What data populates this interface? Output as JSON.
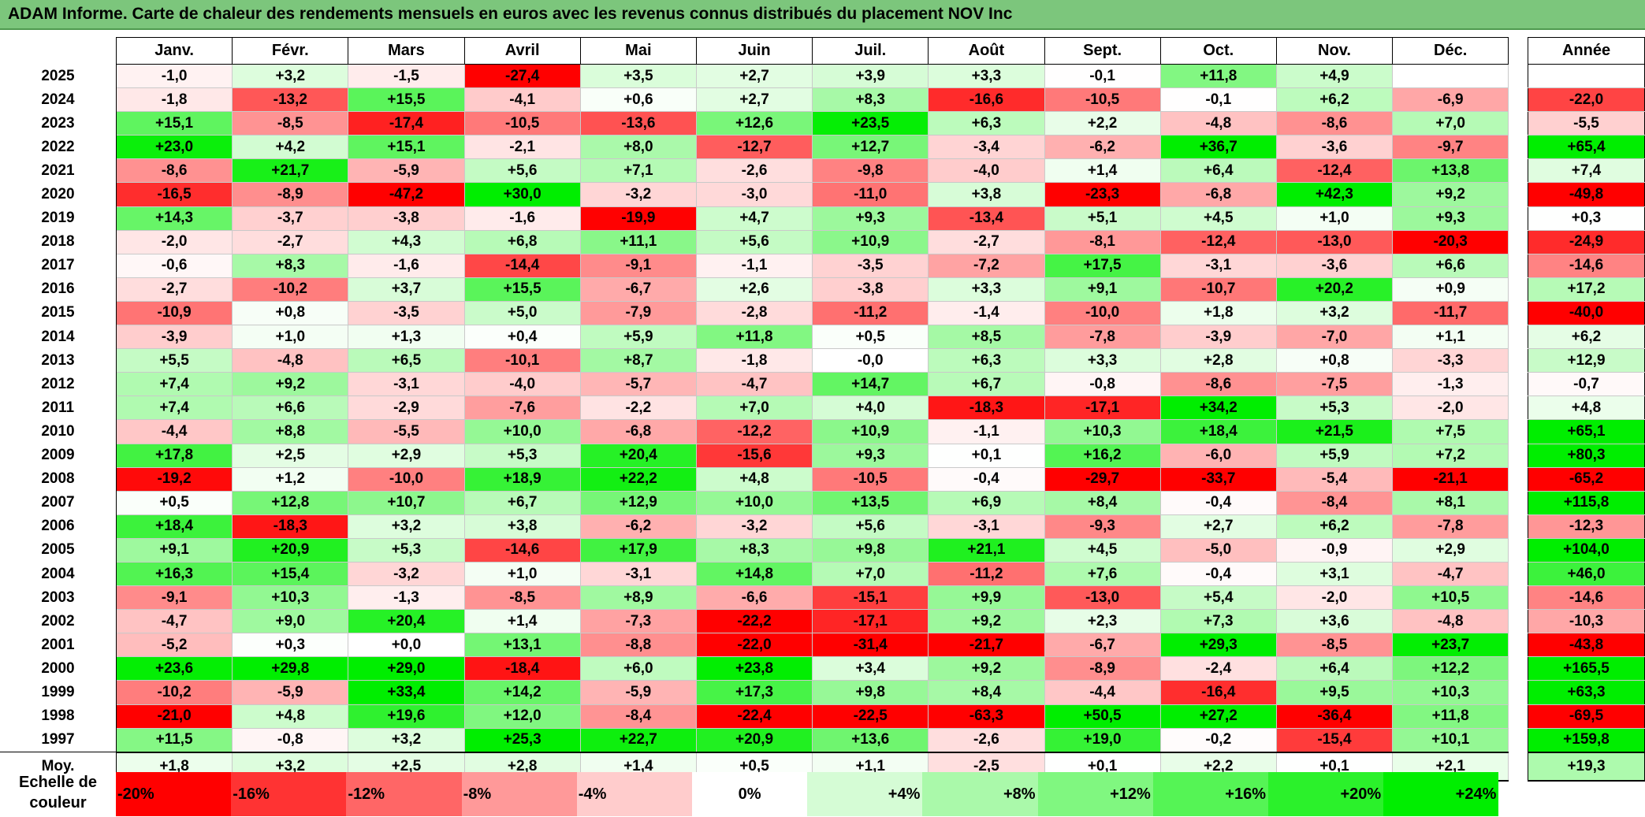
{
  "title": "ADAM Informe. Carte de chaleur des rendements mensuels en euros avec les revenus connus distribués du placement NOV Inc",
  "chart_data": {
    "type": "heatmap",
    "title": "ADAM Informe. Carte de chaleur des rendements mensuels en euros avec les revenus connus distribués du placement NOV Inc",
    "months": [
      "Janv.",
      "Févr.",
      "Mars",
      "Avril",
      "Mai",
      "Juin",
      "Juil.",
      "Août",
      "Sept.",
      "Oct.",
      "Nov.",
      "Déc."
    ],
    "annual_header": "Année",
    "rows": [
      {
        "year": "2025",
        "values": [
          "-1,0",
          "+3,2",
          "-1,5",
          "-27,4",
          "+3,5",
          "+2,7",
          "+3,9",
          "+3,3",
          "-0,1",
          "+11,8",
          "+4,9",
          ""
        ],
        "annual": ""
      },
      {
        "year": "2024",
        "values": [
          "-1,8",
          "-13,2",
          "+15,5",
          "-4,1",
          "+0,6",
          "+2,7",
          "+8,3",
          "-16,6",
          "-10,5",
          "-0,1",
          "+6,2",
          "-6,9"
        ],
        "annual": "-22,0"
      },
      {
        "year": "2023",
        "values": [
          "+15,1",
          "-8,5",
          "-17,4",
          "-10,5",
          "-13,6",
          "+12,6",
          "+23,5",
          "+6,3",
          "+2,2",
          "-4,8",
          "-8,6",
          "+7,0"
        ],
        "annual": "-5,5"
      },
      {
        "year": "2022",
        "values": [
          "+23,0",
          "+4,2",
          "+15,1",
          "-2,1",
          "+8,0",
          "-12,7",
          "+12,7",
          "-3,4",
          "-6,2",
          "+36,7",
          "-3,6",
          "-9,7"
        ],
        "annual": "+65,4"
      },
      {
        "year": "2021",
        "values": [
          "-8,6",
          "+21,7",
          "-5,9",
          "+5,6",
          "+7,1",
          "-2,6",
          "-9,8",
          "-4,0",
          "+1,4",
          "+6,4",
          "-12,4",
          "+13,8"
        ],
        "annual": "+7,4"
      },
      {
        "year": "2020",
        "values": [
          "-16,5",
          "-8,9",
          "-47,2",
          "+30,0",
          "-3,2",
          "-3,0",
          "-11,0",
          "+3,8",
          "-23,3",
          "-6,8",
          "+42,3",
          "+9,2"
        ],
        "annual": "-49,8"
      },
      {
        "year": "2019",
        "values": [
          "+14,3",
          "-3,7",
          "-3,8",
          "-1,6",
          "-19,9",
          "+4,7",
          "+9,3",
          "-13,4",
          "+5,1",
          "+4,5",
          "+1,0",
          "+9,3"
        ],
        "annual": "+0,3"
      },
      {
        "year": "2018",
        "values": [
          "-2,0",
          "-2,7",
          "+4,3",
          "+6,8",
          "+11,1",
          "+5,6",
          "+10,9",
          "-2,7",
          "-8,1",
          "-12,4",
          "-13,0",
          "-20,3"
        ],
        "annual": "-24,9"
      },
      {
        "year": "2017",
        "values": [
          "-0,6",
          "+8,3",
          "-1,6",
          "-14,4",
          "-9,1",
          "-1,1",
          "-3,5",
          "-7,2",
          "+17,5",
          "-3,1",
          "-3,6",
          "+6,6"
        ],
        "annual": "-14,6"
      },
      {
        "year": "2016",
        "values": [
          "-2,7",
          "-10,2",
          "+3,7",
          "+15,5",
          "-6,7",
          "+2,6",
          "-3,8",
          "+3,3",
          "+9,1",
          "-10,7",
          "+20,2",
          "+0,9"
        ],
        "annual": "+17,2"
      },
      {
        "year": "2015",
        "values": [
          "-10,9",
          "+0,8",
          "-3,5",
          "+5,0",
          "-7,9",
          "-2,8",
          "-11,2",
          "-1,4",
          "-10,0",
          "+1,8",
          "+3,2",
          "-11,7"
        ],
        "annual": "-40,0"
      },
      {
        "year": "2014",
        "values": [
          "-3,9",
          "+1,0",
          "+1,3",
          "+0,4",
          "+5,9",
          "+11,8",
          "+0,5",
          "+8,5",
          "-7,8",
          "-3,9",
          "-7,0",
          "+1,1"
        ],
        "annual": "+6,2"
      },
      {
        "year": "2013",
        "values": [
          "+5,5",
          "-4,8",
          "+6,5",
          "-10,1",
          "+8,7",
          "-1,8",
          "-0,0",
          "+6,3",
          "+3,3",
          "+2,8",
          "+0,8",
          "-3,3"
        ],
        "annual": "+12,9"
      },
      {
        "year": "2012",
        "values": [
          "+7,4",
          "+9,2",
          "-3,1",
          "-4,0",
          "-5,7",
          "-4,7",
          "+14,7",
          "+6,7",
          "-0,8",
          "-8,6",
          "-7,5",
          "-1,3"
        ],
        "annual": "-0,7"
      },
      {
        "year": "2011",
        "values": [
          "+7,4",
          "+6,6",
          "-2,9",
          "-7,6",
          "-2,2",
          "+7,0",
          "+4,0",
          "-18,3",
          "-17,1",
          "+34,2",
          "+5,3",
          "-2,0"
        ],
        "annual": "+4,8"
      },
      {
        "year": "2010",
        "values": [
          "-4,4",
          "+8,8",
          "-5,5",
          "+10,0",
          "-6,8",
          "-12,2",
          "+10,9",
          "-1,1",
          "+10,3",
          "+18,4",
          "+21,5",
          "+7,5"
        ],
        "annual": "+65,1"
      },
      {
        "year": "2009",
        "values": [
          "+17,8",
          "+2,5",
          "+2,9",
          "+5,3",
          "+20,4",
          "-15,6",
          "+9,3",
          "+0,1",
          "+16,2",
          "-6,0",
          "+5,9",
          "+7,2"
        ],
        "annual": "+80,3"
      },
      {
        "year": "2008",
        "values": [
          "-19,2",
          "+1,2",
          "-10,0",
          "+18,9",
          "+22,2",
          "+4,8",
          "-10,5",
          "-0,4",
          "-29,7",
          "-33,7",
          "-5,4",
          "-21,1"
        ],
        "annual": "-65,2"
      },
      {
        "year": "2007",
        "values": [
          "+0,5",
          "+12,8",
          "+10,7",
          "+6,7",
          "+12,9",
          "+10,0",
          "+13,5",
          "+6,9",
          "+8,4",
          "-0,4",
          "-8,4",
          "+8,1"
        ],
        "annual": "+115,8"
      },
      {
        "year": "2006",
        "values": [
          "+18,4",
          "-18,3",
          "+3,2",
          "+3,8",
          "-6,2",
          "-3,2",
          "+5,6",
          "-3,1",
          "-9,3",
          "+2,7",
          "+6,2",
          "-7,8"
        ],
        "annual": "-12,3"
      },
      {
        "year": "2005",
        "values": [
          "+9,1",
          "+20,9",
          "+5,3",
          "-14,6",
          "+17,9",
          "+8,3",
          "+9,8",
          "+21,1",
          "+4,5",
          "-5,0",
          "-0,9",
          "+2,9"
        ],
        "annual": "+104,0"
      },
      {
        "year": "2004",
        "values": [
          "+16,3",
          "+15,4",
          "-3,2",
          "+1,0",
          "-3,1",
          "+14,8",
          "+7,0",
          "-11,2",
          "+7,6",
          "-0,4",
          "+3,1",
          "-4,7"
        ],
        "annual": "+46,0"
      },
      {
        "year": "2003",
        "values": [
          "-9,1",
          "+10,3",
          "-1,3",
          "-8,5",
          "+8,9",
          "-6,6",
          "-15,1",
          "+9,9",
          "-13,0",
          "+5,4",
          "-2,0",
          "+10,5"
        ],
        "annual": "-14,6"
      },
      {
        "year": "2002",
        "values": [
          "-4,7",
          "+9,0",
          "+20,4",
          "+1,4",
          "-7,3",
          "-22,2",
          "-17,1",
          "+9,2",
          "+2,3",
          "+7,3",
          "+3,6",
          "-4,8"
        ],
        "annual": "-10,3"
      },
      {
        "year": "2001",
        "values": [
          "-5,2",
          "+0,3",
          "+0,0",
          "+13,1",
          "-8,8",
          "-22,0",
          "-31,4",
          "-21,7",
          "-6,7",
          "+29,3",
          "-8,5",
          "+23,7"
        ],
        "annual": "-43,8"
      },
      {
        "year": "2000",
        "values": [
          "+23,6",
          "+29,8",
          "+29,0",
          "-18,4",
          "+6,0",
          "+23,8",
          "+3,4",
          "+9,2",
          "-8,9",
          "-2,4",
          "+6,4",
          "+12,2"
        ],
        "annual": "+165,5"
      },
      {
        "year": "1999",
        "values": [
          "-10,2",
          "-5,9",
          "+33,4",
          "+14,2",
          "-5,9",
          "+17,3",
          "+9,8",
          "+8,4",
          "-4,4",
          "-16,4",
          "+9,5",
          "+10,3"
        ],
        "annual": "+63,3"
      },
      {
        "year": "1998",
        "values": [
          "-21,0",
          "+4,8",
          "+19,6",
          "+12,0",
          "-8,4",
          "-22,4",
          "-22,5",
          "-63,3",
          "+50,5",
          "+27,2",
          "-36,4",
          "+11,8"
        ],
        "annual": "-69,5"
      },
      {
        "year": "1997",
        "values": [
          "+11,5",
          "-0,8",
          "+3,2",
          "+25,3",
          "+22,7",
          "+20,9",
          "+13,6",
          "-2,6",
          "+19,0",
          "-0,2",
          "-15,4",
          "+10,1"
        ],
        "annual": "+159,8"
      }
    ],
    "average": {
      "label": "Moy.",
      "values": [
        "+1,8",
        "+3,2",
        "+2,5",
        "+2,8",
        "+1,4",
        "+0,5",
        "+1,1",
        "-2,5",
        "+0,1",
        "+2,2",
        "+0,1",
        "+2,1"
      ],
      "annual": "+19,3"
    },
    "scale": {
      "label_line1": "Echelle de",
      "label_line2": "couleur",
      "items": [
        {
          "label": "-20%",
          "value": -20
        },
        {
          "label": "-16%",
          "value": -16
        },
        {
          "label": "-12%",
          "value": -12
        },
        {
          "label": "-8%",
          "value": -8
        },
        {
          "label": "-4%",
          "value": -4
        },
        {
          "label": "0%",
          "value": 0
        },
        {
          "label": "+4%",
          "value": 4
        },
        {
          "label": "+8%",
          "value": 8
        },
        {
          "label": "+12%",
          "value": 12
        },
        {
          "label": "+16%",
          "value": 16
        },
        {
          "label": "+20%",
          "value": 20
        },
        {
          "label": "+24%",
          "value": 24
        }
      ]
    },
    "colors": {
      "negative": "#ff0000",
      "neutral": "#ffffff",
      "positive": "#00ee00",
      "title_bar": "#7cc67c"
    }
  }
}
